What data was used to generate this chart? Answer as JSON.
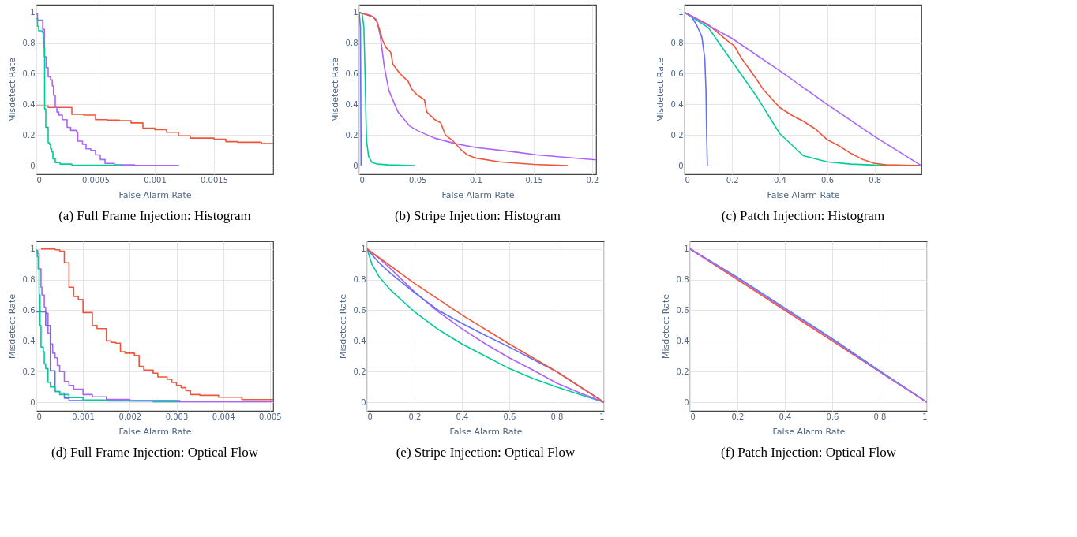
{
  "chart_data": [
    {
      "type": "step",
      "title": "(a) Full Frame Injection: Histogram",
      "xlabel": "False Alarm Rate",
      "ylabel": "Misdetect Rate",
      "xlim": [
        0,
        0.002
      ],
      "xticks": [
        0,
        0.0005,
        0.001,
        0.0015
      ],
      "ylim": [
        -0.056,
        1.05
      ],
      "yticks": [
        0,
        0.2,
        0.4,
        0.6,
        0.8,
        1
      ],
      "grid": true,
      "series": [
        {
          "color": "#ef553b",
          "x": [
            0,
            0.0001,
            0.0003,
            0.0004,
            0.0005,
            0.0006,
            0.0007,
            0.0008,
            0.0009,
            0.001,
            0.0011,
            0.0012,
            0.0013,
            0.0015,
            0.0016,
            0.0017,
            0.0019,
            0.002
          ],
          "values": [
            0.39,
            0.38,
            0.335,
            0.33,
            0.3,
            0.297,
            0.293,
            0.279,
            0.245,
            0.235,
            0.218,
            0.195,
            0.18,
            0.173,
            0.157,
            0.153,
            0.145,
            0.145
          ]
        },
        {
          "color": "#ab63fa",
          "x": [
            0,
            1e-05,
            5.4e-05,
            6.8e-05,
            8.3e-05,
            0.0001,
            0.00012,
            0.000135,
            0.000145,
            0.00016,
            0.000174,
            0.00019,
            0.00022,
            0.00026,
            0.00029,
            0.00034,
            0.00035,
            0.00039,
            0.00042,
            0.00046,
            0.0005,
            0.00054,
            0.00058,
            0.00066,
            0.00083,
            0.0012
          ],
          "values": [
            0.99,
            0.95,
            0.89,
            0.71,
            0.64,
            0.58,
            0.56,
            0.52,
            0.46,
            0.38,
            0.35,
            0.33,
            0.3,
            0.25,
            0.23,
            0.22,
            0.16,
            0.14,
            0.11,
            0.1,
            0.07,
            0.04,
            0.015,
            0.005,
            0.001,
            0
          ]
        },
        {
          "color": "#00cc96",
          "x": [
            0,
            1e-05,
            2e-05,
            5e-05,
            6e-05,
            6.5e-05,
            7e-05,
            8e-05,
            0.0001,
            0.00011,
            0.00012,
            0.00013,
            0.00014,
            0.00016,
            0.0002,
            0.0003,
            0.00072
          ],
          "values": [
            0.96,
            0.91,
            0.88,
            0.87,
            0.83,
            0.77,
            0.37,
            0.25,
            0.15,
            0.14,
            0.11,
            0.09,
            0.045,
            0.02,
            0.01,
            0.003,
            0
          ]
        }
      ]
    },
    {
      "type": "line",
      "title": "(b) Stripe Injection: Histogram",
      "xlabel": "False Alarm Rate",
      "ylabel": "Misdetect Rate",
      "xlim": [
        0,
        0.2035
      ],
      "xticks": [
        0,
        0.05,
        0.1,
        0.15,
        0.2
      ],
      "ylim": [
        -0.056,
        1.05
      ],
      "yticks": [
        0,
        0.2,
        0.4,
        0.6,
        0.8,
        1
      ],
      "grid": true,
      "series": [
        {
          "color": "#636efa",
          "x": [
            0,
            0.001,
            0.0016
          ],
          "values": [
            1,
            0.9,
            0
          ]
        },
        {
          "color": "#00cc96",
          "x": [
            0,
            0.0025,
            0.004,
            0.005,
            0.0058,
            0.0063,
            0.008,
            0.011,
            0.016,
            0.025,
            0.048
          ],
          "values": [
            1,
            0.99,
            0.9,
            0.6,
            0.3,
            0.16,
            0.06,
            0.02,
            0.01,
            0.005,
            0
          ]
        },
        {
          "color": "#ab63fa",
          "x": [
            0,
            0.01,
            0.015,
            0.018,
            0.0216,
            0.0255,
            0.0333,
            0.0431,
            0.051,
            0.0647,
            0.0824,
            0.1,
            0.133,
            0.153,
            0.2033
          ],
          "values": [
            1,
            0.98,
            0.95,
            0.85,
            0.64,
            0.49,
            0.35,
            0.26,
            0.225,
            0.18,
            0.144,
            0.119,
            0.09,
            0.07,
            0.038
          ]
        },
        {
          "color": "#ef553b",
          "x": [
            0,
            0.012,
            0.015,
            0.017,
            0.02,
            0.023,
            0.027,
            0.029,
            0.035,
            0.042,
            0.045,
            0.05,
            0.056,
            0.058,
            0.065,
            0.07,
            0.074,
            0.08,
            0.088,
            0.093,
            0.1,
            0.12,
            0.15,
            0.179
          ],
          "values": [
            1,
            0.97,
            0.94,
            0.9,
            0.82,
            0.77,
            0.74,
            0.66,
            0.6,
            0.55,
            0.5,
            0.46,
            0.43,
            0.35,
            0.3,
            0.28,
            0.2,
            0.165,
            0.1,
            0.07,
            0.05,
            0.025,
            0.008,
            0
          ]
        }
      ]
    },
    {
      "type": "line",
      "title": "(c) Patch Injection: Histogram",
      "xlabel": "False Alarm Rate",
      "ylabel": "Misdetect Rate",
      "xlim": [
        0,
        0.997
      ],
      "xticks": [
        0,
        0.2,
        0.4,
        0.6,
        0.8
      ],
      "ylim": [
        -0.056,
        1.05
      ],
      "yticks": [
        0,
        0.2,
        0.4,
        0.6,
        0.8,
        1
      ],
      "grid": true,
      "series": [
        {
          "color": "#636efa",
          "x": [
            0,
            0.03,
            0.05,
            0.065,
            0.073,
            0.085,
            0.09,
            0.093,
            0.096
          ],
          "values": [
            1,
            0.97,
            0.92,
            0.87,
            0.84,
            0.7,
            0.5,
            0.2,
            0
          ]
        },
        {
          "color": "#00cc96",
          "x": [
            0,
            0.1,
            0.2,
            0.3,
            0.4,
            0.5,
            0.6,
            0.7,
            0.8,
            0.997
          ],
          "values": [
            1,
            0.9,
            0.68,
            0.46,
            0.21,
            0.065,
            0.025,
            0.01,
            0.004,
            0
          ]
        },
        {
          "color": "#ef553b",
          "x": [
            0,
            0.1,
            0.18,
            0.21,
            0.24,
            0.3,
            0.33,
            0.4,
            0.45,
            0.5,
            0.55,
            0.6,
            0.65,
            0.7,
            0.75,
            0.8,
            0.85,
            0.997
          ],
          "values": [
            1,
            0.92,
            0.815,
            0.78,
            0.7,
            0.57,
            0.5,
            0.38,
            0.33,
            0.29,
            0.24,
            0.17,
            0.13,
            0.08,
            0.04,
            0.015,
            0.005,
            0
          ]
        },
        {
          "color": "#ab63fa",
          "x": [
            0,
            0.2,
            0.4,
            0.6,
            0.8,
            0.997
          ],
          "values": [
            1,
            0.83,
            0.62,
            0.4,
            0.19,
            0
          ]
        }
      ]
    },
    {
      "type": "step",
      "title": "(d) Full Frame Injection: Optical Flow",
      "xlabel": "False Alarm Rate",
      "ylabel": "Misdetect Rate",
      "xlim": [
        0,
        0.00507
      ],
      "xticks": [
        0,
        0.001,
        0.002,
        0.003,
        0.004,
        0.005
      ],
      "ylim": [
        -0.056,
        1.05
      ],
      "yticks": [
        0,
        0.2,
        0.4,
        0.6,
        0.8,
        1
      ],
      "grid": true,
      "series": [
        {
          "color": "#ef553b",
          "x": [
            0.0001,
            0.0004,
            0.0005,
            0.0006,
            0.0007,
            0.0008,
            0.0009,
            0.001,
            0.0012,
            0.0013,
            0.0015,
            0.0016,
            0.0017,
            0.0018,
            0.0019,
            0.0021,
            0.0022,
            0.0023,
            0.0025,
            0.0026,
            0.0028,
            0.0029,
            0.003,
            0.0031,
            0.0032,
            0.0033,
            0.0035,
            0.0039,
            0.0044,
            0.00507
          ],
          "values": [
            1,
            0.995,
            0.985,
            0.91,
            0.75,
            0.69,
            0.67,
            0.585,
            0.5,
            0.48,
            0.4,
            0.39,
            0.385,
            0.33,
            0.32,
            0.305,
            0.235,
            0.21,
            0.19,
            0.165,
            0.15,
            0.13,
            0.11,
            0.095,
            0.075,
            0.05,
            0.045,
            0.033,
            0.017,
            0.013
          ]
        },
        {
          "color": "#ab63fa",
          "x": [
            0,
            3e-05,
            6e-05,
            0.0001,
            0.00012,
            0.00017,
            0.0002,
            0.00025,
            0.0003,
            0.00035,
            0.0004,
            0.00045,
            0.0005,
            0.0006,
            0.0007,
            0.0008,
            0.001,
            0.0012,
            0.0015,
            0.002,
            0.003,
            0.00507
          ],
          "values": [
            0.99,
            0.97,
            0.87,
            0.75,
            0.7,
            0.62,
            0.58,
            0.45,
            0.38,
            0.32,
            0.29,
            0.24,
            0.2,
            0.135,
            0.11,
            0.085,
            0.05,
            0.035,
            0.018,
            0.008,
            0.004,
            0.003
          ]
        },
        {
          "color": "#636efa",
          "x": [
            0,
            0.0002,
            0.0003,
            0.0004,
            0.0005,
            0.0006,
            0.0007,
            0.00307
          ],
          "values": [
            0.59,
            0.5,
            0.205,
            0.07,
            0.06,
            0.027,
            0.01,
            0.003
          ]
        },
        {
          "color": "#00cc96",
          "x": [
            0,
            2e-05,
            4e-05,
            6e-05,
            8e-05,
            0.0001,
            0.00015,
            0.00017,
            0.0002,
            0.00025,
            0.0003,
            0.0004,
            0.0005,
            0.0007,
            0.001,
            0.0015,
            0.0025,
            0.003
          ],
          "values": [
            0.99,
            0.95,
            0.87,
            0.7,
            0.5,
            0.36,
            0.33,
            0.25,
            0.22,
            0.13,
            0.1,
            0.07,
            0.05,
            0.03,
            0.015,
            0.008,
            0.003,
            0.002
          ]
        }
      ]
    },
    {
      "type": "line",
      "title": "(e) Stripe Injection: Optical Flow",
      "xlabel": "False Alarm Rate",
      "ylabel": "Misdetect Rate",
      "xlim": [
        0,
        1
      ],
      "xticks": [
        0,
        0.2,
        0.4,
        0.6,
        0.8,
        1
      ],
      "ylim": [
        -0.056,
        1.05
      ],
      "yticks": [
        0,
        0.2,
        0.4,
        0.6,
        0.8,
        1
      ],
      "grid": true,
      "series": [
        {
          "color": "#00cc96",
          "x": [
            0,
            0.02,
            0.05,
            0.1,
            0.2,
            0.3,
            0.4,
            0.5,
            0.6,
            0.7,
            0.8,
            0.9,
            1
          ],
          "values": [
            1,
            0.9,
            0.82,
            0.73,
            0.59,
            0.475,
            0.38,
            0.3,
            0.22,
            0.155,
            0.1,
            0.05,
            0
          ]
        },
        {
          "color": "#ab63fa",
          "x": [
            0,
            0.05,
            0.1,
            0.2,
            0.3,
            0.4,
            0.5,
            0.6,
            0.7,
            0.8,
            0.9,
            1
          ],
          "values": [
            1,
            0.94,
            0.87,
            0.72,
            0.59,
            0.48,
            0.38,
            0.29,
            0.21,
            0.125,
            0.06,
            0
          ]
        },
        {
          "color": "#636efa",
          "x": [
            0,
            0.05,
            0.1,
            0.2,
            0.3,
            0.4,
            0.5,
            0.6,
            0.7,
            0.8,
            1
          ],
          "values": [
            1,
            0.91,
            0.84,
            0.715,
            0.6,
            0.515,
            0.435,
            0.36,
            0.28,
            0.2,
            0
          ]
        },
        {
          "color": "#ef553b",
          "x": [
            0,
            0.2,
            0.4,
            0.6,
            0.8,
            1
          ],
          "values": [
            1,
            0.775,
            0.57,
            0.38,
            0.2,
            0
          ]
        }
      ]
    },
    {
      "type": "line",
      "title": "(f) Patch Injection: Optical Flow",
      "xlabel": "False Alarm Rate",
      "ylabel": "Misdetect Rate",
      "xlim": [
        0,
        1
      ],
      "xticks": [
        0,
        0.2,
        0.4,
        0.6,
        0.8,
        1
      ],
      "ylim": [
        -0.056,
        1.05
      ],
      "yticks": [
        0,
        0.2,
        0.4,
        0.6,
        0.8,
        1
      ],
      "grid": true,
      "series": [
        {
          "color": "#00cc96",
          "x": [
            0,
            0.2,
            0.4,
            0.6,
            0.8,
            1
          ],
          "values": [
            1,
            0.815,
            0.615,
            0.415,
            0.205,
            0
          ]
        },
        {
          "color": "#636efa",
          "x": [
            0,
            0.2,
            0.4,
            0.6,
            0.8,
            1
          ],
          "values": [
            1,
            0.812,
            0.612,
            0.412,
            0.203,
            0
          ]
        },
        {
          "color": "#ef553b",
          "x": [
            0,
            0.2,
            0.4,
            0.6,
            0.8,
            1
          ],
          "values": [
            1,
            0.8,
            0.6,
            0.4,
            0.2,
            0
          ]
        },
        {
          "color": "#ab63fa",
          "x": [
            0,
            0.2,
            0.4,
            0.6,
            0.8,
            1
          ],
          "values": [
            1,
            0.81,
            0.61,
            0.41,
            0.2,
            0
          ]
        }
      ]
    }
  ]
}
